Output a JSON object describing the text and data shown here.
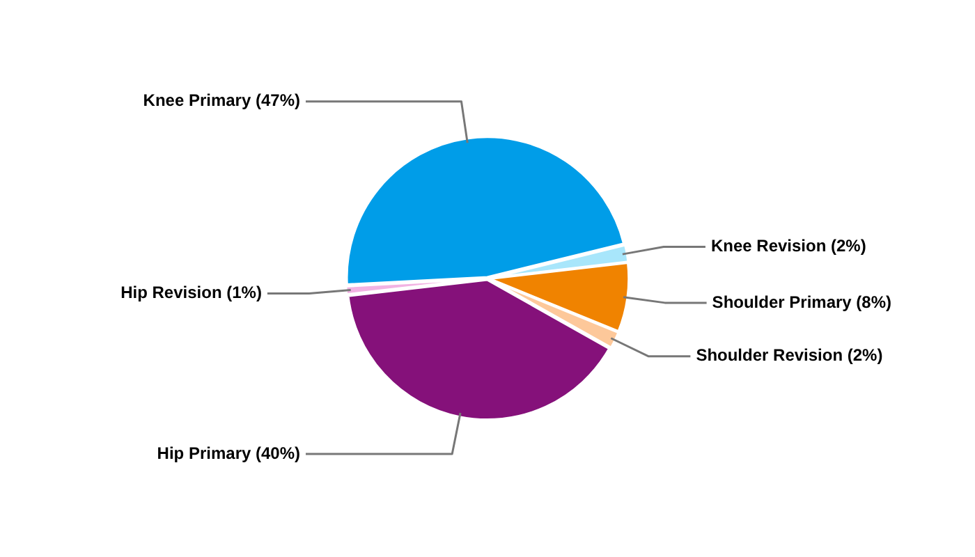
{
  "chart_data": {
    "type": "pie",
    "categories": [
      "Knee Primary",
      "Knee Revision",
      "Shoulder Primary",
      "Shoulder Revision",
      "Hip Primary",
      "Hip Revision"
    ],
    "values": [
      47,
      2,
      8,
      2,
      40,
      1
    ],
    "value_labels": [
      "(47%)",
      "(2%)",
      "(8%)",
      "(2%)",
      "(40%)",
      "(1%)"
    ],
    "colors": [
      "#009de8",
      "#a8e6fb",
      "#f08300",
      "#fdc89a",
      "#85117a",
      "#f2b3e3"
    ],
    "legend": false
  }
}
